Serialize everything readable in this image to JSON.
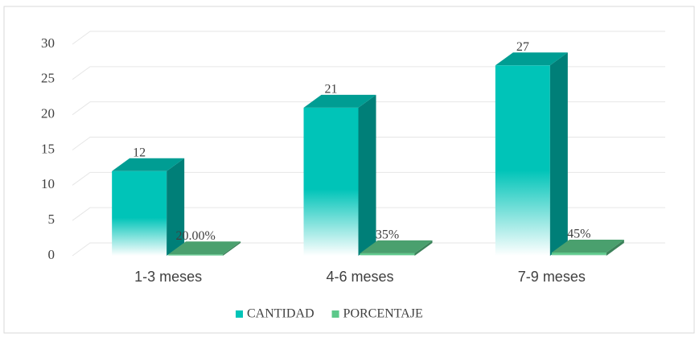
{
  "chart_data": {
    "type": "bar3d",
    "categories": [
      "1-3 meses",
      "4-6 meses",
      "7-9 meses"
    ],
    "series": [
      {
        "name": "CANTIDAD",
        "color": "#00c4b8",
        "values": [
          12,
          21,
          27
        ]
      },
      {
        "name": "PORCENTAJE",
        "color": "#5cc88a",
        "values": [
          0.2,
          0.35,
          0.45
        ],
        "value_labels": [
          "20.00%",
          "35%",
          "45%"
        ]
      }
    ],
    "ylim": [
      0,
      30
    ],
    "yticks": [
      0,
      5,
      10,
      15,
      20,
      25,
      30
    ],
    "grid": true,
    "legend": "bottom"
  }
}
